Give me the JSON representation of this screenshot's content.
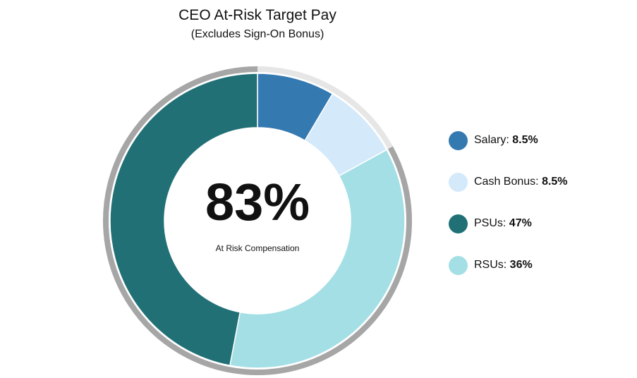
{
  "chart_data": {
    "type": "pie",
    "title": "CEO At-Risk Target Pay",
    "subtitle": "(Excludes Sign-On Bonus)",
    "center": {
      "value": "83%",
      "label": "At Risk Compensation"
    },
    "slices": [
      {
        "name": "Salary",
        "value": 8.5,
        "value_label": "8.5%",
        "color": "#3579B1"
      },
      {
        "name": "Cash Bonus",
        "value": 8.5,
        "value_label": "8.5%",
        "color": "#D4E9FA"
      },
      {
        "name": "RSUs",
        "value": 36,
        "value_label": "36%",
        "color": "#A3DFE5"
      },
      {
        "name": "PSUs",
        "value": 47,
        "value_label": "47%",
        "color": "#207076"
      }
    ],
    "outer_ring": {
      "at_risk_percent": 83,
      "at_risk_color": "#A6A6A6",
      "fixed_color": "#E6E6E6"
    },
    "legend": [
      {
        "name": "Salary",
        "value_label": "8.5%",
        "color": "#3579B1"
      },
      {
        "name": "Cash Bonus",
        "value_label": "8.5%",
        "color": "#D4E9FA"
      },
      {
        "name": "PSUs",
        "value_label": "47%",
        "color": "#207076"
      },
      {
        "name": "RSUs",
        "value_label": "36%",
        "color": "#A3DFE5"
      }
    ],
    "legend_position": "right"
  }
}
